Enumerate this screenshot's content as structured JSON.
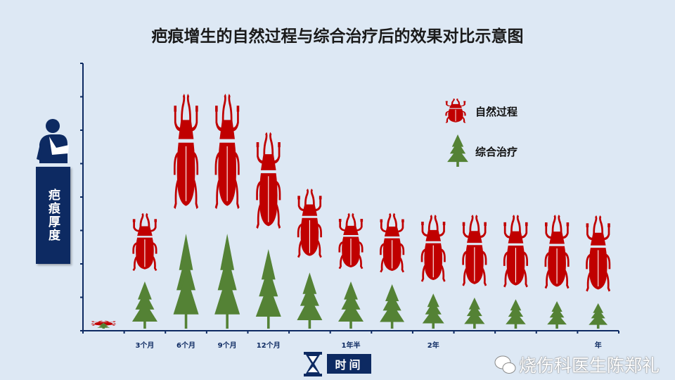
{
  "title": "疤痕增生的自然过程与综合治疗后的效果对比示意图",
  "watermark": "烧伤科医生陈郑礼",
  "colors": {
    "natural": "#c00000",
    "treatment": "#548235",
    "axis": "#0d2a62",
    "background": "#dde8f4"
  },
  "chart_data": {
    "type": "pictorial",
    "title": "疤痕增生的自然过程与综合治疗后的效果对比示意图",
    "ylabel": "疤痕厚度",
    "xlabel": "时间",
    "ylim": [
      0,
      8
    ],
    "grid": false,
    "legend_position": "top-right",
    "categories": [
      "",
      "3个月",
      "6个月",
      "9个月",
      "12个月",
      "",
      "1年半",
      "",
      "2年",
      "",
      "",
      "",
      "年"
    ],
    "series": [
      {
        "name": "自然过程",
        "icon": "beetle-icon",
        "top": [
          0.3,
          3.52,
          7.09,
          7.09,
          5.94,
          4.25,
          3.52,
          3.52,
          3.47,
          3.47,
          3.47,
          3.47,
          3.45
        ],
        "bottom": [
          0.15,
          1.73,
          3.52,
          3.52,
          2.95,
          2.11,
          1.79,
          1.68,
          1.39,
          1.26,
          1.22,
          1.18,
          1.09
        ]
      },
      {
        "name": "综合治疗",
        "icon": "tree-icon",
        "values": [
          0.17,
          1.41,
          2.84,
          2.84,
          2.38,
          1.68,
          1.41,
          1.33,
          1.05,
          0.93,
          0.88,
          0.82,
          0.76
        ]
      }
    ]
  }
}
